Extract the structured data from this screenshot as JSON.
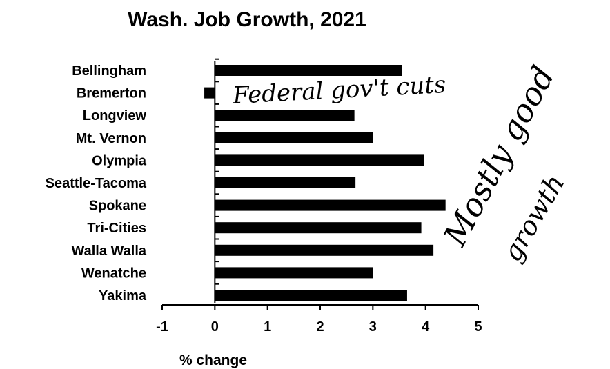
{
  "chart_data": {
    "type": "bar",
    "orientation": "horizontal",
    "title": "Wash. Job Growth, 2021",
    "xlabel": "% change",
    "ylabel": "",
    "categories": [
      "Bellingham",
      "Bremerton",
      "Longview",
      "Mt. Vernon",
      "Olympia",
      "Seattle-Tacoma",
      "Spokane",
      "Tri-Cities",
      "Walla Walla",
      "Wenatche",
      "Yakima"
    ],
    "values": [
      3.55,
      -0.2,
      2.65,
      3.0,
      3.97,
      2.67,
      4.38,
      3.92,
      4.15,
      3.0,
      3.65
    ],
    "xlim": [
      -1,
      5
    ],
    "xticks": [
      "-1",
      "0",
      "1",
      "2",
      "3",
      "4",
      "5"
    ],
    "grid": false,
    "legend": "none",
    "bar_color": "#000000",
    "annotations": [
      {
        "text": "Federal gov't cuts"
      },
      {
        "text": "Mostly good"
      },
      {
        "text": "growth"
      }
    ]
  }
}
